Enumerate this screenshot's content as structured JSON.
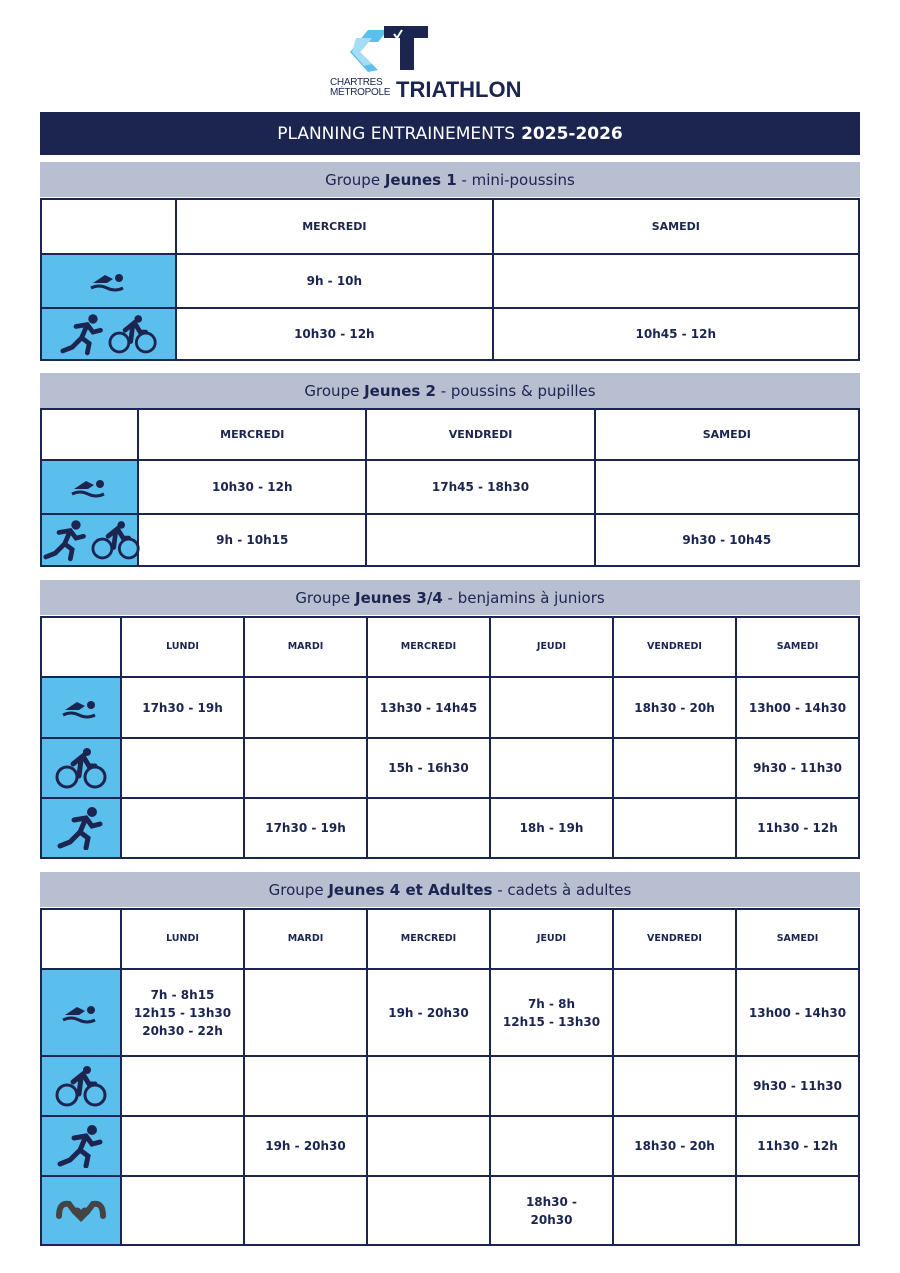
{
  "logo": {
    "line1": "CHARTRES",
    "line2": "MÉTROPOLE",
    "brand": "TRIATHLON"
  },
  "title": {
    "text": "PLANNING ENTRAINEMENTS",
    "year": "2025-2026"
  },
  "colors": {
    "navy": "#1b2550",
    "icon_cell": "#5bbfee",
    "group_header": "#b7bfd1"
  },
  "groups": [
    {
      "prefix": "Groupe ",
      "name": "Jeunes 1",
      "suffix": " - mini-poussins",
      "days": [
        "MERCREDI",
        "SAMEDI"
      ],
      "rows": [
        {
          "icon": "swim-icon",
          "cells": [
            "9h - 10h",
            ""
          ]
        },
        {
          "icon": "run-bike-icon",
          "cells": [
            "10h30 - 12h",
            "10h45 - 12h"
          ]
        }
      ]
    },
    {
      "prefix": "Groupe ",
      "name": "Jeunes 2",
      "suffix": " - poussins & pupilles",
      "days": [
        "MERCREDI",
        "VENDREDI",
        "SAMEDI"
      ],
      "rows": [
        {
          "icon": "swim-icon",
          "cells": [
            "10h30 - 12h",
            "17h45 - 18h30",
            ""
          ]
        },
        {
          "icon": "run-bike-icon",
          "cells": [
            "9h - 10h15",
            "",
            "9h30 - 10h45"
          ]
        }
      ]
    },
    {
      "prefix": "Groupe ",
      "name": "Jeunes 3/4",
      "suffix": " - benjamins à juniors",
      "days": [
        "LUNDI",
        "MARDI",
        "MERCREDI",
        "JEUDI",
        "VENDREDI",
        "SAMEDI"
      ],
      "rows": [
        {
          "icon": "swim-icon",
          "cells": [
            "17h30 - 19h",
            "",
            "13h30 - 14h45",
            "",
            "18h30 - 20h",
            "13h00 - 14h30"
          ]
        },
        {
          "icon": "bike-icon",
          "cells": [
            "",
            "",
            "15h - 16h30",
            "",
            "",
            "9h30 - 11h30"
          ]
        },
        {
          "icon": "run-icon",
          "cells": [
            "",
            "17h30 - 19h",
            "",
            "18h - 19h",
            "",
            "11h30 - 12h"
          ]
        }
      ]
    },
    {
      "prefix": "Groupe ",
      "name": "Jeunes 4 et Adultes",
      "suffix": " - cadets à adultes",
      "days": [
        "LUNDI",
        "MARDI",
        "MERCREDI",
        "JEUDI",
        "VENDREDI",
        "SAMEDI"
      ],
      "rows": [
        {
          "icon": "swim-icon",
          "cells": [
            "7h - 8h15\n12h15 - 13h30\n20h30 - 22h",
            "",
            "19h - 20h30",
            "7h - 8h\n12h15 - 13h30",
            "",
            "13h00 - 14h30"
          ]
        },
        {
          "icon": "bike-icon",
          "cells": [
            "",
            "",
            "",
            "",
            "",
            "9h30 - 11h30"
          ]
        },
        {
          "icon": "run-icon",
          "cells": [
            "",
            "19h - 20h30",
            "",
            "",
            "18h30 - 20h",
            "11h30 - 12h"
          ]
        },
        {
          "icon": "strength-icon",
          "cells": [
            "",
            "",
            "",
            "18h30 -\n20h30",
            "",
            ""
          ]
        }
      ]
    }
  ]
}
